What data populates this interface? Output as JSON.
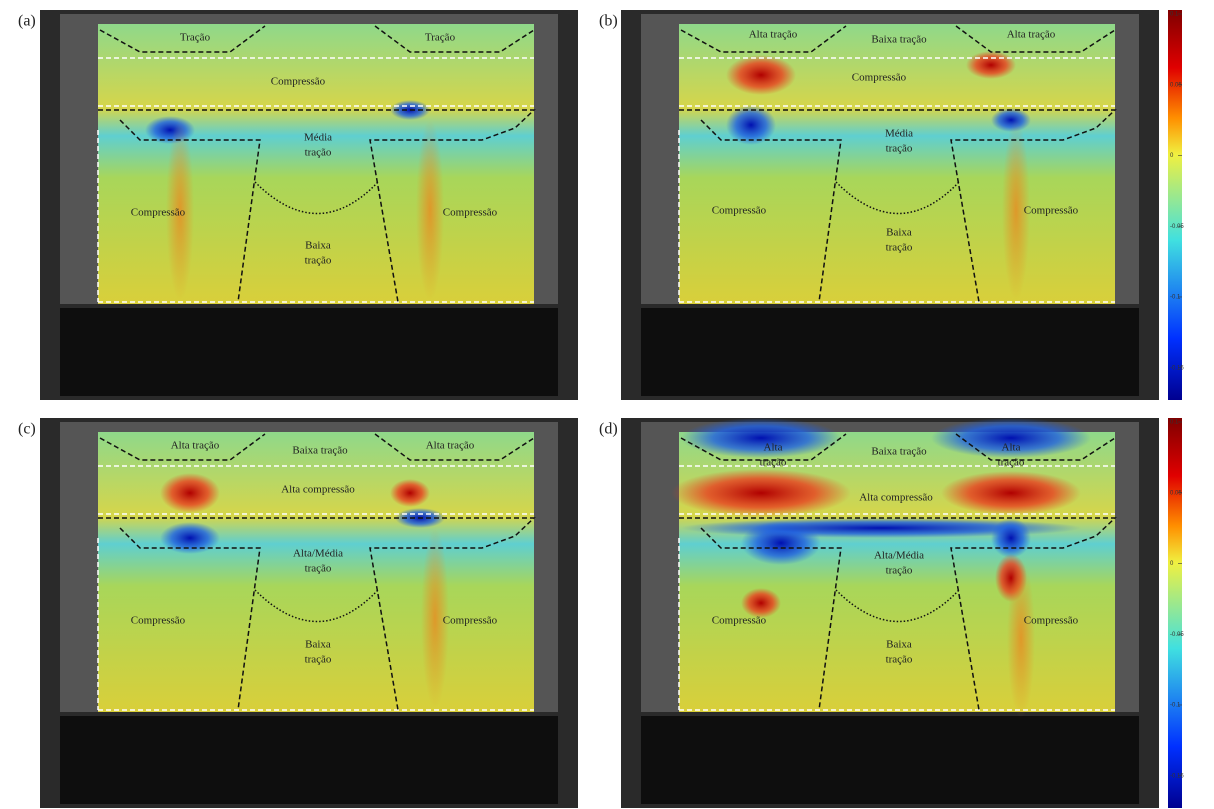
{
  "panels": [
    {
      "label": "(a)",
      "annotations": [
        {
          "lines": [
            "Tração"
          ]
        },
        {
          "lines": [
            "Tração"
          ]
        },
        {
          "lines": [
            "Compressão"
          ]
        },
        {
          "lines": [
            "Média",
            "tração"
          ]
        },
        {
          "lines": [
            "Compressão"
          ]
        },
        {
          "lines": [
            "Baixa",
            "tração"
          ]
        },
        {
          "lines": [
            "Compressão"
          ]
        }
      ]
    },
    {
      "label": "(b)",
      "annotations": [
        {
          "lines": [
            "Alta tração"
          ]
        },
        {
          "lines": [
            "Baixa tração"
          ]
        },
        {
          "lines": [
            "Alta tração"
          ]
        },
        {
          "lines": [
            "Compressão"
          ]
        },
        {
          "lines": [
            "Média",
            "tração"
          ]
        },
        {
          "lines": [
            "Compressão"
          ]
        },
        {
          "lines": [
            "Baixa",
            "tração"
          ]
        },
        {
          "lines": [
            "Compressão"
          ]
        }
      ]
    },
    {
      "label": "(c)",
      "annotations": [
        {
          "lines": [
            "Alta tração"
          ]
        },
        {
          "lines": [
            "Baixa tração"
          ]
        },
        {
          "lines": [
            "Alta tração"
          ]
        },
        {
          "lines": [
            "Alta compressão"
          ]
        },
        {
          "lines": [
            "Alta/Média",
            "tração"
          ]
        },
        {
          "lines": [
            "Compressão"
          ]
        },
        {
          "lines": [
            "Baixa",
            "tração"
          ]
        },
        {
          "lines": [
            "Compressão"
          ]
        }
      ]
    },
    {
      "label": "(d)",
      "annotations": [
        {
          "lines": [
            "Alta",
            "tração"
          ]
        },
        {
          "lines": [
            "Baixa tração"
          ]
        },
        {
          "lines": [
            "Alta",
            "tração"
          ]
        },
        {
          "lines": [
            "Alta compressão"
          ]
        },
        {
          "lines": [
            "Alta/Média",
            "tração"
          ]
        },
        {
          "lines": [
            "Compressão"
          ]
        },
        {
          "lines": [
            "Baixa",
            "tração"
          ]
        },
        {
          "lines": [
            "Compressão"
          ]
        }
      ]
    }
  ],
  "colorbars": [
    {
      "lim": [
        -0.17,
        0.1
      ],
      "ticks": [
        0.1,
        0.05,
        0,
        -0.05,
        -0.1,
        -0.15
      ]
    },
    {
      "lim": [
        -0.17,
        0.1
      ],
      "ticks": [
        0.1,
        0.05,
        0,
        -0.05,
        -0.1,
        -0.15
      ]
    }
  ]
}
